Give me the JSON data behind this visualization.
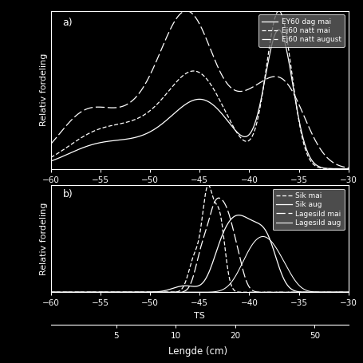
{
  "bg_color": "#000000",
  "fg_color": "#ffffff",
  "xlim": [
    -60,
    -30
  ],
  "xlabel": "TS",
  "ylabel": "Relativ fordeling",
  "title_a": "a)",
  "title_b": "b)",
  "legend_a": [
    "EY60 dag mai",
    "Ej60 natt mai",
    "Ej60 natt august"
  ],
  "legend_b": [
    "Sik mai",
    "Sik aug",
    "Lagesild mai",
    "Lagesild aug"
  ],
  "lengde_ticks": [
    5,
    10,
    20,
    50
  ],
  "lengde_label": "Lengde (cm)",
  "ts_ticks": [
    -60,
    -55,
    -50,
    -45,
    -40,
    -35,
    -30
  ]
}
